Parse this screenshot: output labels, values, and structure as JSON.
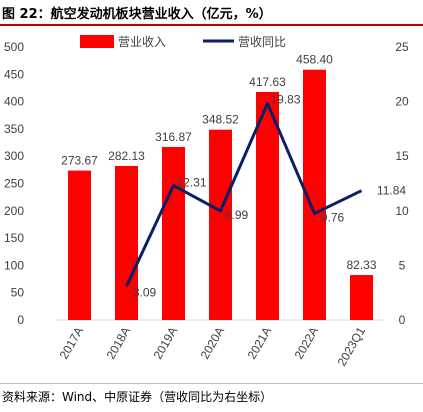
{
  "header": {
    "title": "图 22：航空发动机板块营业收入（亿元，%）"
  },
  "footer": {
    "source": "资料来源：Wind、中原证券（营收同比为右坐标）"
  },
  "colors": {
    "bar": "#ff0000",
    "line": "#0b1f66",
    "title_rule": "#c00000",
    "axis_text": "#404040"
  },
  "chart_data": {
    "type": "bar",
    "categories": [
      "2017A",
      "2018A",
      "2019A",
      "2020A",
      "2021A",
      "2022A",
      "2023Q1"
    ],
    "series": [
      {
        "name": "营业收入",
        "type": "bar",
        "axis": "left",
        "values": [
          273.67,
          282.13,
          316.87,
          348.52,
          417.63,
          458.4,
          82.33
        ],
        "labels": [
          "273.67",
          "282.13",
          "316.87",
          "348.52",
          "417.63",
          "458.40",
          "82.33"
        ]
      },
      {
        "name": "营收同比",
        "type": "line",
        "axis": "right",
        "values": [
          null,
          3.09,
          12.31,
          9.99,
          19.83,
          9.76,
          11.84
        ],
        "labels": [
          "",
          "3.09",
          "12.31",
          "9.99",
          "19.83",
          "9.76",
          "11.84"
        ]
      }
    ],
    "y_left": {
      "ylim": [
        0,
        500
      ],
      "ticks": [
        "0",
        "50",
        "100",
        "150",
        "200",
        "250",
        "300",
        "350",
        "400",
        "450",
        "500"
      ]
    },
    "y_right": {
      "ylim": [
        0,
        25
      ],
      "ticks": [
        "0",
        "5",
        "10",
        "15",
        "20",
        "25"
      ]
    },
    "legend": "top",
    "grid": false
  }
}
